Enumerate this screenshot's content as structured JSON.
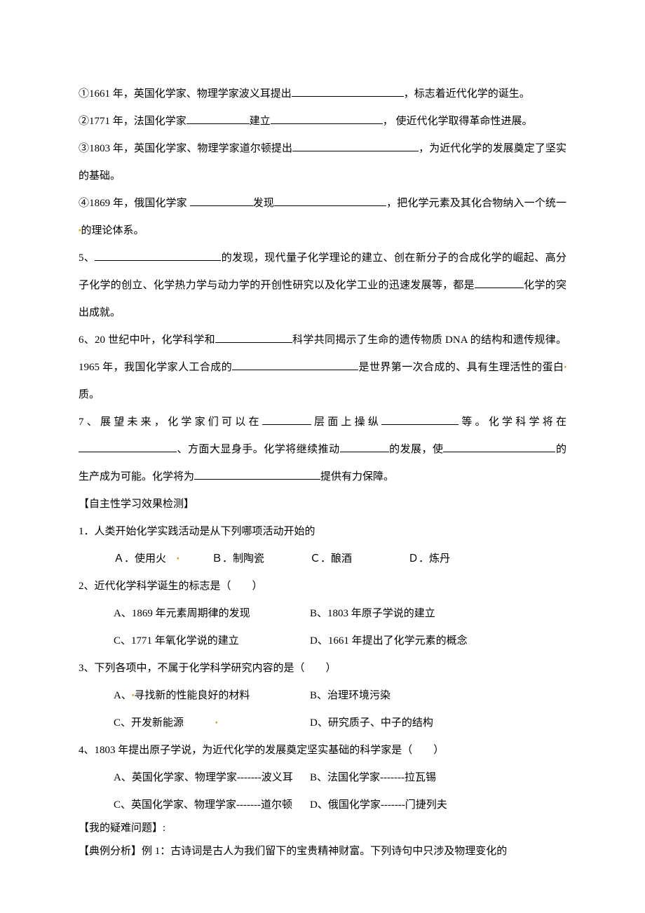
{
  "items": {
    "i1": "①1661 年，英国化学家、物理学家波义耳提出",
    "i1_tail": "，标志着近代化学的诞生。",
    "i2": "②1771 年，法国化学家",
    "i2_mid": "建立",
    "i2_tail": "， 使近代化学取得革命性进展。",
    "i3": "③1803 年，英国化学家、物理学家道尔顿提出",
    "i3_tail": "，为近代化学的发展奠定了坚实的基础。",
    "i4": "④1869 年，俄国化学家 ",
    "i4_mid": "发现",
    "i4_tail": "，把化学元素及其化合物纳入一个统一",
    "i4_tail2": "的理论体系。",
    "q5a": "5、",
    "q5b": "的发现，现代量子化学理论的建立、创在新分子的合成化学的崛起、高分子化学的创立、化学热力学与动力学的开创性研究以及化学工业的迅速发展等，都是",
    "q5c": "化学的突出成就。",
    "q6a": "6、20 世纪中叶，化学科学和",
    "q6b": "科学共同揭示了生命的遗传物质 DNA 的结构和遗传规律。1965 年，我国化学家人工合成的",
    "q6c": "是世界第一次合成的、具有生理活性的蛋白",
    "q6d": "质。",
    "q7a": "7、展望未来，化学家们可以在",
    "q7b": "层面上操纵",
    "q7c": "等。化学科学将在",
    "q7d": "方面大显身手。化学将继续推动",
    "q7e": "的发展，使",
    "q7f": "的生产成为可能。化学将为",
    "q7g": "提供有力保障。"
  },
  "check_head": "【自主性学习效果检测】",
  "q1": {
    "stem": "1．人类开始化学实践活动是从下列哪项活动开始的",
    "a": "Ａ．使用火",
    "b": "Ｂ．制陶瓷",
    "c": "Ｃ．酿酒",
    "d": "Ｄ．炼丹"
  },
  "q2": {
    "stem": "2、近代化学科学诞生的标志是（　　）",
    "a": "A、1869 年元素周期律的发现",
    "b": "B、1803 年原子学说的建立",
    "c": "C、1771 年氧化学说的建立",
    "d": "D、1661 年提出了化学元素的概念"
  },
  "q3": {
    "stem": "3、下列各项中，不属于化学科学研究内容的是（　　）",
    "a": "A、",
    "a2": "寻找新的性能良好的材料",
    "b": "B、治理环境污染",
    "c": "C、开发新能源",
    "d": "D、研究质子、中子的结构"
  },
  "q4": {
    "stem": "4、1803 年提出原子学说，为近代化学的发展奠定坚实基础的科学家是（　　）",
    "a": "A、英国化学家、物理学家-------波义耳",
    "b": "B、法国化学家-------拉瓦锡",
    "c": "C、英国化学家、物理学家-------道尔顿",
    "d": "D、俄国化学家-------门捷列夫"
  },
  "doubt": "【我的疑难问题】:",
  "ex_head": "【典例分析】",
  "ex1": "例 1：古诗词是古人为我们留下的宝贵精神财富。下列诗句中只涉及物理变化的"
}
